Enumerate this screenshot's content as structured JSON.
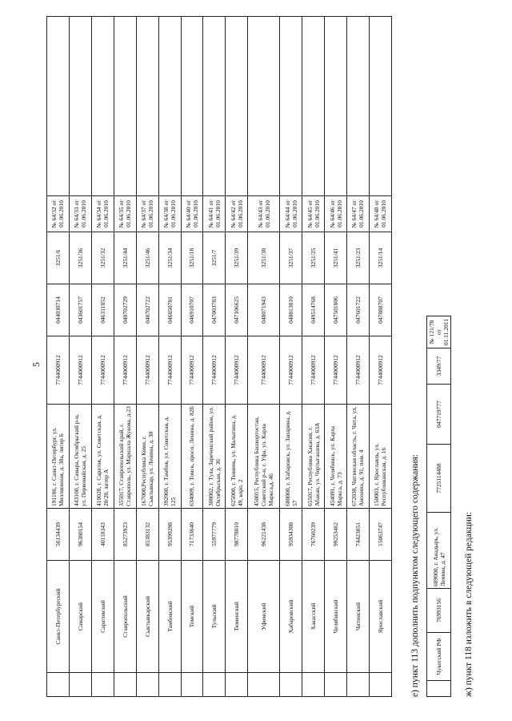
{
  "page_number": "5",
  "main_table": {
    "rows": [
      {
        "name": "Санкт-Петербургский",
        "code": "56134439",
        "address": "191186, г. Санкт-Петербург, ул. Миллионная, д. 38а, литер Б",
        "inn": "7744000912",
        "bik": "044030714",
        "reg": "3251/6",
        "decision": "№ 64/32 от 01.06.2010"
      },
      {
        "name": "Самарский",
        "code": "96380154",
        "address": "443100, г. Самара, Октябрьский р-н, ул. Первомайская, д. 25",
        "inn": "7744000912",
        "bik": "043601757",
        "reg": "3251/36",
        "decision": "№ 64/33 от 01.06.2010"
      },
      {
        "name": "Саратовский",
        "code": "40118343",
        "address": "410028, г. Саратов, ул. Советская, д. 20/28, литер А",
        "inn": "7744000912",
        "bik": "046311852",
        "reg": "3251/32",
        "decision": "№ 64/34 от 01.06.2010"
      },
      {
        "name": "Ставропольский",
        "code": "85273923",
        "address": "355017, Ставропольский край, г. Ставрополь, ул. Маршала Жукова, д.23",
        "inn": "7744000912",
        "bik": "040702729",
        "reg": "3251/44",
        "decision": "№ 64/35 от 01.06.2010"
      },
      {
        "name": "Сыктывкарский",
        "code": "85383132",
        "address": "167000,Республика Коми, г. Сыктывкар, ул. Ленина, д. 30",
        "inn": "7744000912",
        "bik": "048702722",
        "reg": "3251/46",
        "decision": "№ 64/37 от 01.06.2010"
      },
      {
        "name": "Тамбовский",
        "code": "95399298",
        "address": "392000, г. Тамбов, ул. Советская, д. 125",
        "inn": "7744000912",
        "bik": "046850781",
        "reg": "3251/34",
        "decision": "№ 64/38 от 01.06.2010"
      },
      {
        "name": "Томский",
        "code": "71733640",
        "address": "634009, г. Томск, просп. Ленина, д. 82Б",
        "inn": "7744000912",
        "bik": "046910707",
        "reg": "3251/18",
        "decision": "№ 64/40 от 01.06.2010"
      },
      {
        "name": "Тульский",
        "code": "55977779",
        "address": "300002, г. Тула, Зареченский район, ул. Октябрьская, д. 36",
        "inn": "7744000912",
        "bik": "047003783",
        "reg": "3251/7",
        "decision": "№ 64/41 от 01.06.2010"
      },
      {
        "name": "Тюменский",
        "code": "98778010",
        "address": "625000, г. Тюмень, ул. Малыгина, д. 49, корп. 2",
        "inn": "7744000912",
        "bik": "047106625",
        "reg": "3251/39",
        "decision": "№ 64/42 от 01.06.2010"
      },
      {
        "name": "Уфимский",
        "code": "96221438",
        "address": "450015, Республика Башкортостан, Советский р-н, г. Уфа, ул. Карла Маркса,д. 46",
        "inn": "7744000912",
        "bik": "048071943",
        "reg": "3251/38",
        "decision": "№ 64/43 от 01.06.2010"
      },
      {
        "name": "Хабаровский",
        "code": "95934308",
        "address": "680000, г. Хабаровск, ул. Запарина, д. 57",
        "inn": "7744000912",
        "bik": "040813810",
        "reg": "3251/37",
        "decision": "№ 64/44 от 01.06.2010"
      },
      {
        "name": "Хакасский",
        "code": "76760239",
        "address": "655017, Республика Хакасия, г. Абакан, ул. Чертыгашева, д. 63А",
        "inn": "7744000912",
        "bik": "049514768",
        "reg": "3251/25",
        "decision": "№ 64/45 от 01.06.2010"
      },
      {
        "name": "Челябинский",
        "code": "99253462",
        "address": "454091, г. Челябинск, ул. Карла Маркса, д. 73",
        "inn": "7744000912",
        "bik": "047501806",
        "reg": "3251/41",
        "decision": "№ 64/46 от 01.06.2010"
      },
      {
        "name": "Читинский",
        "code": "74423851",
        "address": "672038, Читинская область, г. Чита, ул. Анохина, д. 91, пом. 4",
        "inn": "7744000912",
        "bik": "047601722",
        "reg": "3251/23",
        "decision": "№ 64/47 от 01.06.2010"
      },
      {
        "name": "Ярославский",
        "code": "15063747",
        "address": "150003, г. Ярославль, ул. Республиканская, д. 16",
        "inn": "7744000912",
        "bik": "047888707",
        "reg": "3251/14",
        "decision": "№ 64/48 от 01.06.2010"
      }
    ]
  },
  "para_e": "е)  пункт 113 дополнить подпунктом следующего содержания:",
  "extra_row": {
    "name": "Чукотский РФ",
    "code": "76993156",
    "address": "689000, г. Анадырь, ул. Ленина, д. 47",
    "inn": "7725114488",
    "bik": "047719777",
    "reg": "3349/77",
    "decision": "№ 121/78 от 01.11.2011"
  },
  "para_zh": "ж)  пункт 118 изложить в следующей редакции:"
}
